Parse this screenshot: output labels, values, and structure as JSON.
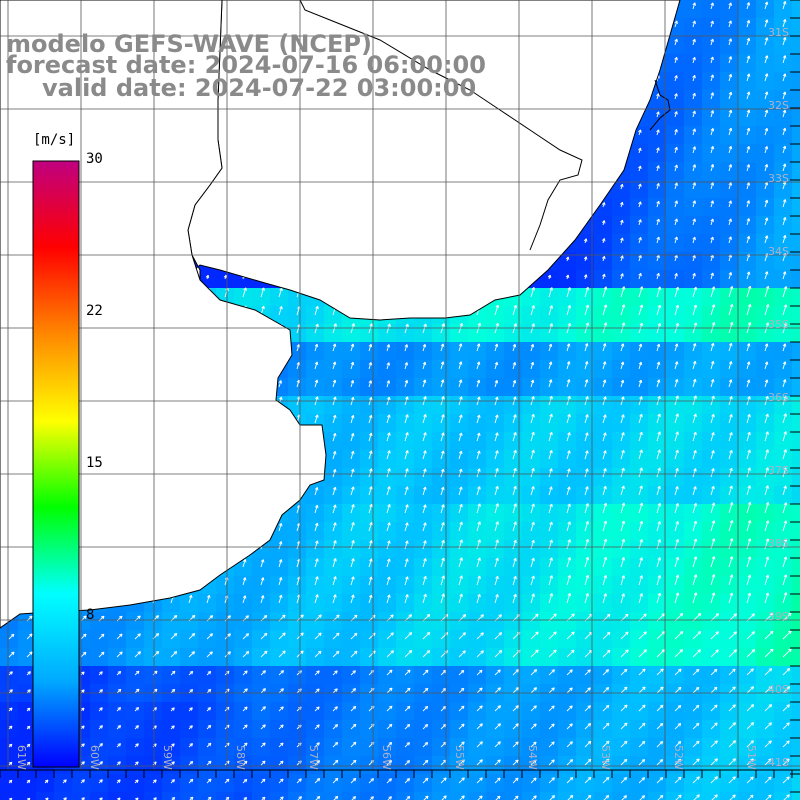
{
  "title": {
    "line1": "modelo GEFS-WAVE (NCEP)",
    "line2": "forecast date: 2024-07-16 06:00:00",
    "line3": "valid date: 2024-07-22 03:00:00"
  },
  "colorbar": {
    "unit": "[m/s]",
    "min": 0,
    "max": 30,
    "ticks": [
      "30",
      "22",
      "15",
      "8"
    ],
    "tick_values": [
      30,
      22,
      15,
      8
    ],
    "colors": [
      "#0000ff",
      "#00aaff",
      "#00ffff",
      "#00ff00",
      "#ffff00",
      "#ff8800",
      "#ff0000",
      "#c00080"
    ]
  },
  "axes": {
    "lon_labels": [
      "61W",
      "60W",
      "59W",
      "58W",
      "57W",
      "56W",
      "55W",
      "54W",
      "53W",
      "52W",
      "51W"
    ],
    "lat_labels": [
      "31S",
      "32S",
      "33S",
      "34S",
      "35S",
      "36S",
      "37S",
      "38S",
      "39S",
      "40S",
      "41S"
    ]
  },
  "colors": {
    "land": "#ffffff",
    "coast": "#000000",
    "grid": "#555555",
    "arrow": "#ffffff",
    "title": "#8a8a8a"
  }
}
